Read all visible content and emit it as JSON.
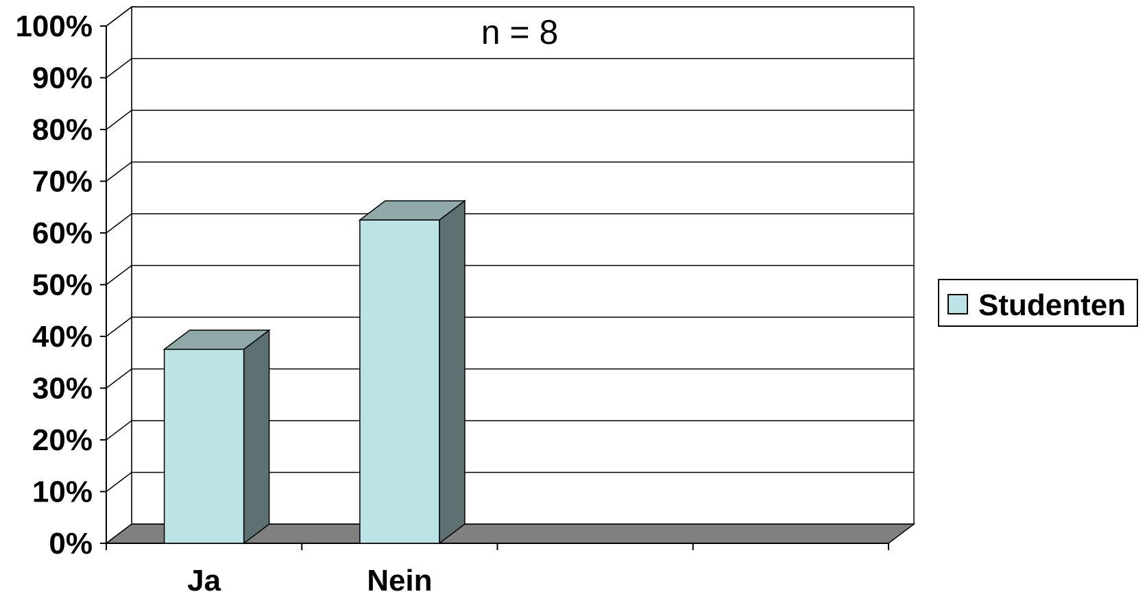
{
  "chart_data": {
    "type": "bar",
    "style": "3d-column",
    "categories": [
      "Ja",
      "Nein"
    ],
    "series": [
      {
        "name": "Studenten",
        "values": [
          37.5,
          62.5
        ],
        "color": "#bce3e6"
      }
    ],
    "yticks": [
      "0%",
      "10%",
      "20%",
      "30%",
      "40%",
      "50%",
      "60%",
      "70%",
      "80%",
      "90%",
      "100%"
    ],
    "ylim": [
      0,
      100
    ],
    "annotation": "n = 8",
    "grid": true,
    "legend": "right",
    "colors": {
      "bar_front": "#bce3e6",
      "bar_top": "#8fa9a9",
      "bar_side": "#5d7072",
      "floor": "#808080"
    }
  }
}
